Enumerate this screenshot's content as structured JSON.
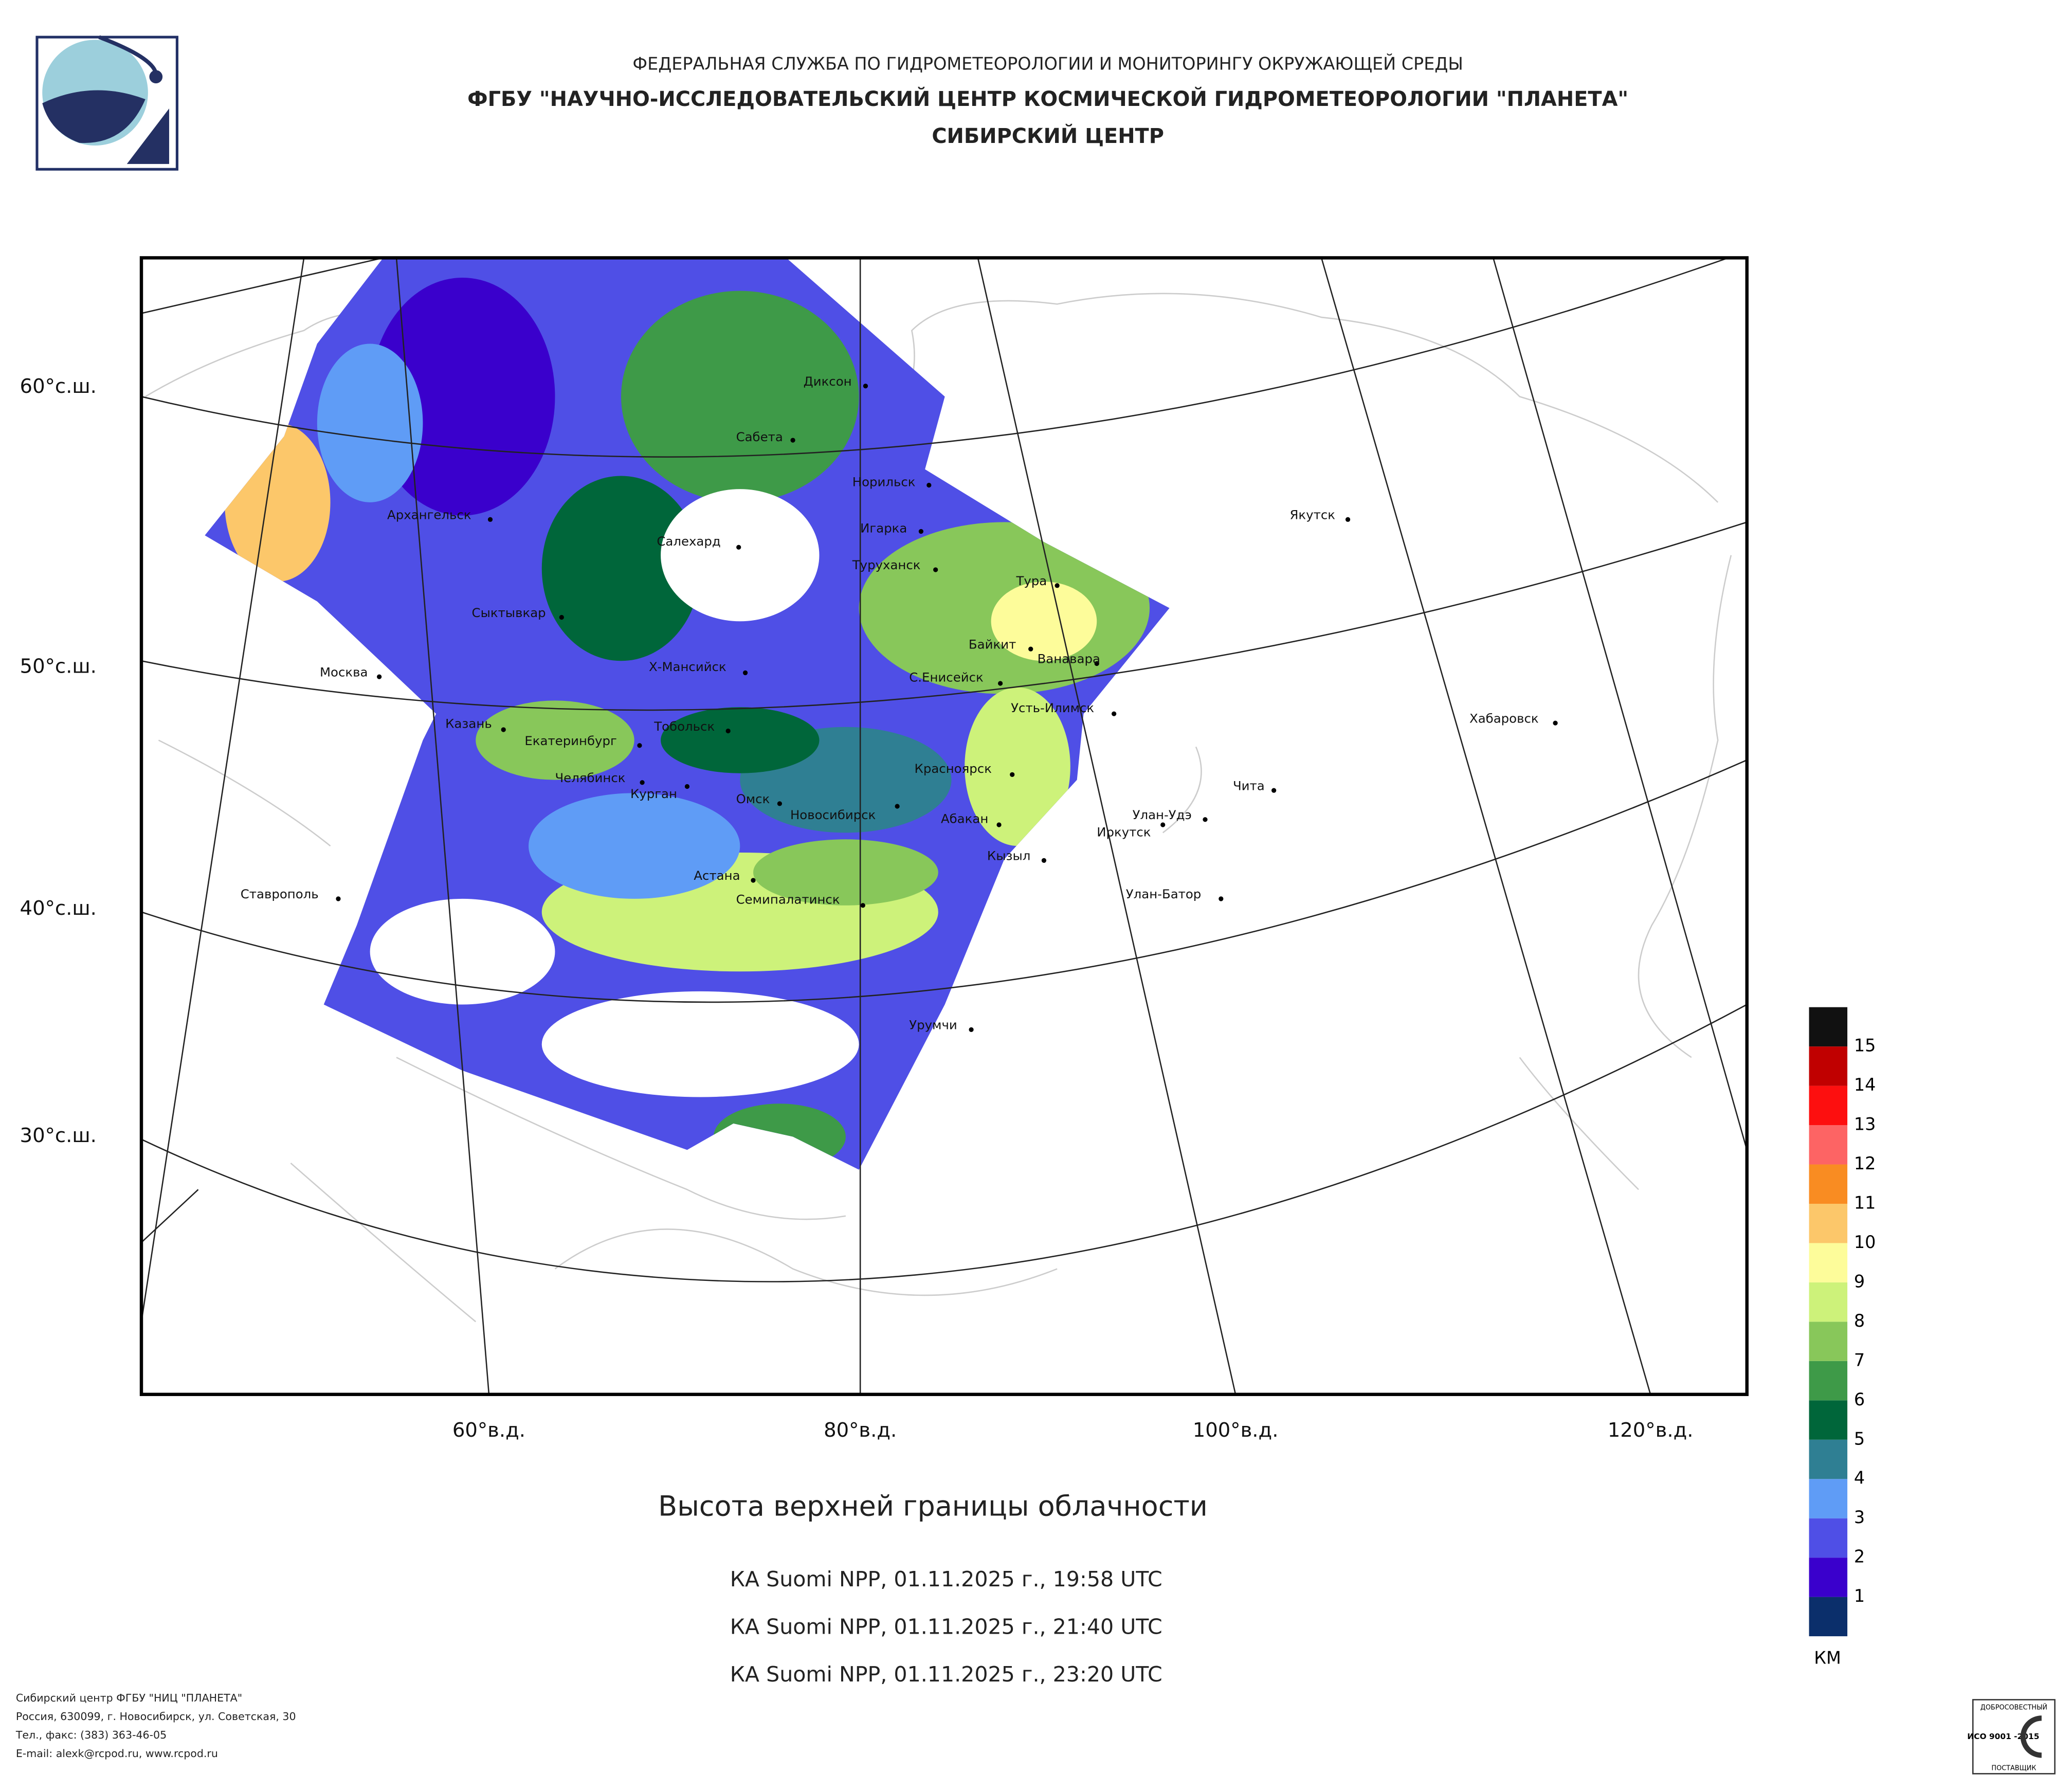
{
  "header": {
    "agency": "ФЕДЕРАЛЬНАЯ СЛУЖБА ПО ГИДРОМЕТЕОРОЛОГИИ И МОНИТОРИНГУ ОКРУЖАЮЩЕЙ СРЕДЫ",
    "institute": "ФГБУ \"НАУЧНО-ИССЛЕДОВАТЕЛЬСКИЙ ЦЕНТР КОСМИЧЕСКОЙ ГИДРОМЕТЕОРОЛОГИИ \"ПЛАНЕТА\"",
    "center": "СИБИРСКИЙ ЦЕНТР"
  },
  "map": {
    "lat_labels": [
      "60°с.ш.",
      "50°с.ш.",
      "40°с.ш.",
      "30°с.ш."
    ],
    "lon_labels": [
      "60°в.д.",
      "80°в.д.",
      "100°в.д.",
      "120°в.д."
    ],
    "cities": [
      "Диксон",
      "Сабета",
      "Норильск",
      "Игарка",
      "Архангельск",
      "Салехард",
      "Туруханск",
      "Тура",
      "Якутск",
      "Сыктывкар",
      "Байкит",
      "Ванавара",
      "Москва",
      "Х-Мансийск",
      "С.Енисейск",
      "Усть-Илимск",
      "Хабаровск",
      "Казань",
      "Тобольск",
      "Екатеринбург",
      "Челябинск",
      "Красноярск",
      "Курган",
      "Чита",
      "Омск",
      "Новосибирск",
      "Улан-Удэ",
      "Абакан",
      "Иркутск",
      "Кызыл",
      "Астана",
      "Ставрополь",
      "Улан-Батор",
      "Семипалатинск",
      "Урумчи"
    ]
  },
  "legend": {
    "top_color": "#111111",
    "items": [
      {
        "label": "1",
        "color": "#0b2f6b"
      },
      {
        "label": "2",
        "color": "#3a00cc"
      },
      {
        "label": "3",
        "color": "#4f4fe6"
      },
      {
        "label": "4",
        "color": "#5f9cf6"
      },
      {
        "label": "5",
        "color": "#2f7f93"
      },
      {
        "label": "6",
        "color": "#00663a"
      },
      {
        "label": "7",
        "color": "#3e9a48"
      },
      {
        "label": "8",
        "color": "#88c75a"
      },
      {
        "label": "9",
        "color": "#cdf27a"
      },
      {
        "label": "10",
        "color": "#fdfc9a"
      },
      {
        "label": "11",
        "color": "#fcc76a"
      },
      {
        "label": "12",
        "color": "#f98c22"
      },
      {
        "label": "13",
        "color": "#fd6464"
      },
      {
        "label": "14",
        "color": "#fd0f0f"
      },
      {
        "label": "15",
        "color": "#c00000"
      }
    ],
    "unit": "КМ"
  },
  "title": "Высота верхней границы облачности",
  "passes": [
    "КА Suomi NPP, 01.11.2025 г., 19:58 UTC",
    "КА Suomi NPP, 01.11.2025 г., 21:40 UTC",
    "КА Suomi NPP, 01.11.2025 г., 23:20 UTC"
  ],
  "footer": [
    "Сибирский центр ФГБУ \"НИЦ \"ПЛАНЕТА\"",
    "Россия, 630099, г. Новосибирск, ул. Советская, 30",
    "Тел., факс: (383) 363-46-05",
    "E-mail: alexk@rcpod.ru, www.rcpod.ru"
  ],
  "badge": {
    "top": "ДОБРОСОВЕСТНЫЙ",
    "code": "ИСО 9001 -2015",
    "bottom": "ПОСТАВЩИК"
  }
}
